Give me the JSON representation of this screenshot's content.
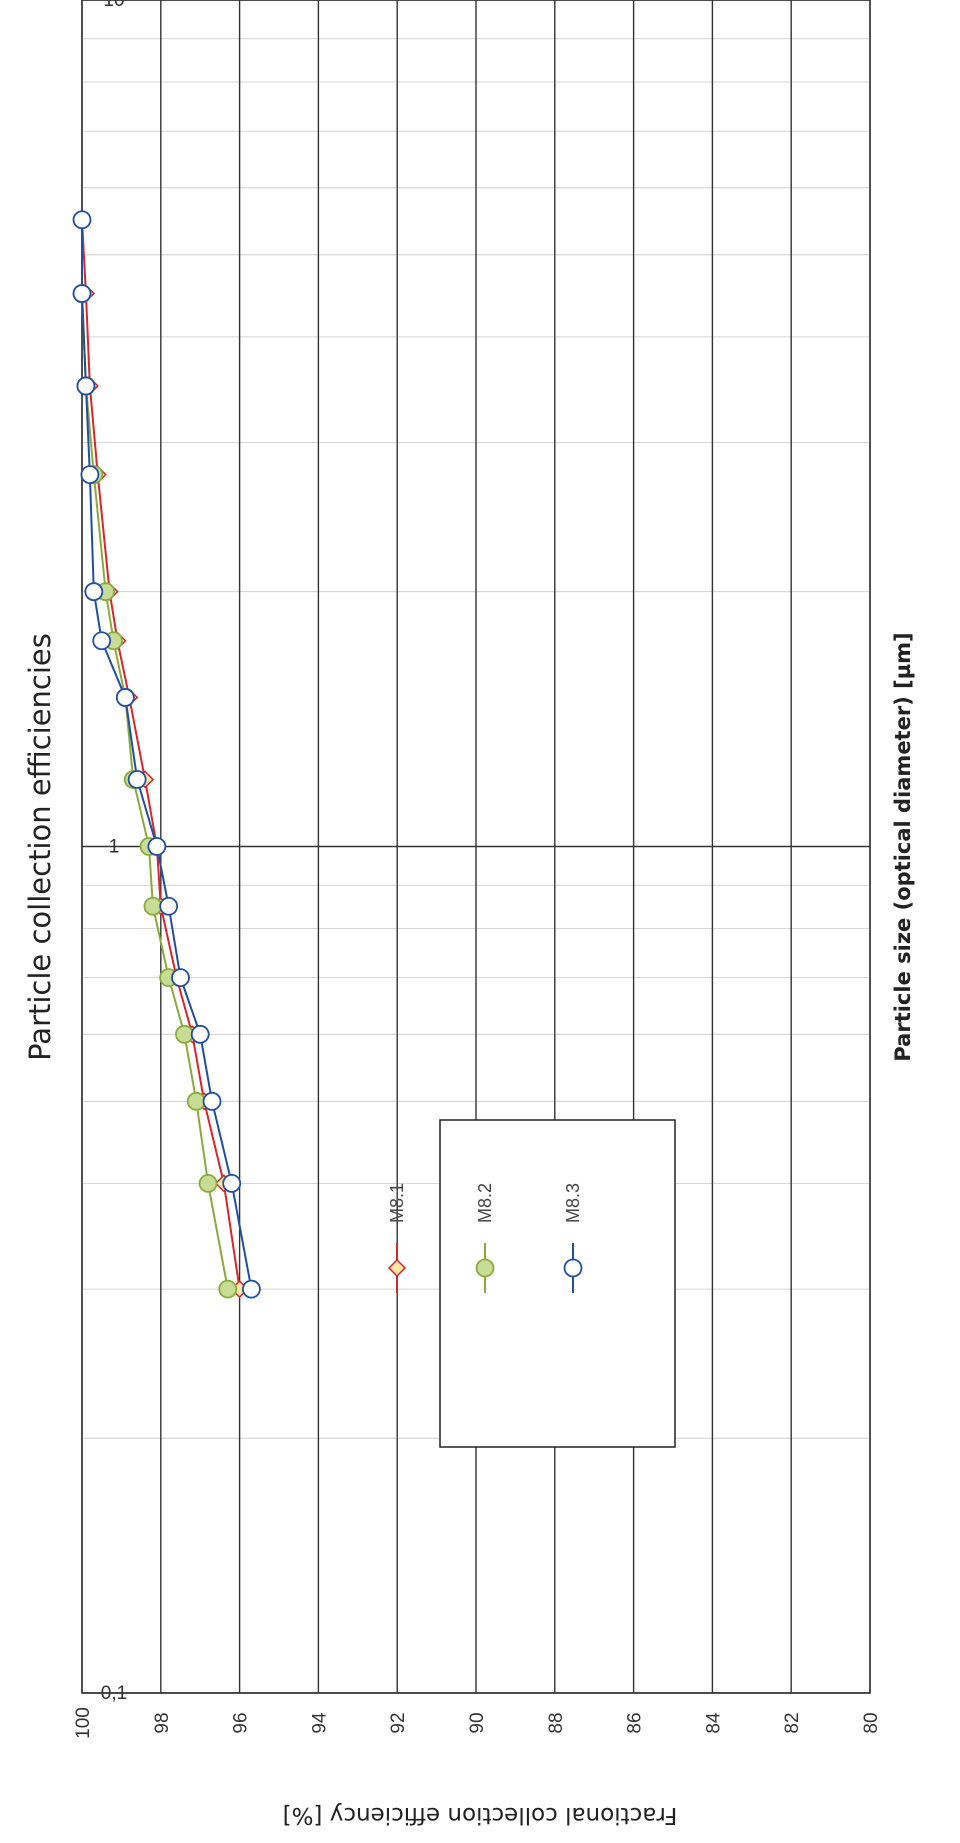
{
  "chart_data": {
    "type": "line",
    "title": "Particle collection efficiencies",
    "xlabel": "Particle size (optical diameter) [µm]",
    "ylabel": "Fractional collection efficiency [%]",
    "x_scale": "log",
    "xlim": [
      0.1,
      10
    ],
    "ylim": [
      80,
      100
    ],
    "x_ticks": [
      {
        "value": 0.1,
        "label": "0,1"
      },
      {
        "value": 1,
        "label": "1"
      },
      {
        "value": 10,
        "label": "10"
      }
    ],
    "y_ticks": [
      {
        "value": 80,
        "label": "80"
      },
      {
        "value": 82,
        "label": "82"
      },
      {
        "value": 84,
        "label": "84"
      },
      {
        "value": 86,
        "label": "86"
      },
      {
        "value": 88,
        "label": "88"
      },
      {
        "value": 90,
        "label": "90"
      },
      {
        "value": 92,
        "label": "92"
      },
      {
        "value": 94,
        "label": "94"
      },
      {
        "value": 96,
        "label": "96"
      },
      {
        "value": 98,
        "label": "98"
      },
      {
        "value": 100,
        "label": "100"
      }
    ],
    "grid": true,
    "legend_position": "lower-left",
    "series": [
      {
        "name": "M8.1",
        "color": "#d9262b",
        "marker": "diamond",
        "marker_fill": "#fde8a8",
        "x": [
          0.3,
          0.4,
          0.5,
          0.6,
          0.7,
          0.85,
          1.0,
          1.2,
          1.5,
          1.75,
          2.0,
          2.75,
          3.5,
          4.5,
          5.5
        ],
        "y": [
          96.0,
          96.4,
          96.9,
          97.2,
          97.6,
          98.0,
          98.1,
          98.4,
          98.8,
          99.1,
          99.3,
          99.6,
          99.8,
          99.9,
          100.0
        ]
      },
      {
        "name": "M8.2",
        "color": "#8aab3a",
        "marker": "circle",
        "marker_fill": "#c8dc96",
        "x": [
          0.3,
          0.4,
          0.5,
          0.6,
          0.7,
          0.85,
          1.0,
          1.2,
          1.5,
          1.75,
          2.0,
          2.75,
          3.5,
          4.5
        ],
        "y": [
          96.3,
          96.8,
          97.1,
          97.4,
          97.8,
          98.2,
          98.3,
          98.7,
          98.9,
          99.2,
          99.4,
          99.7,
          99.9,
          100.0
        ]
      },
      {
        "name": "M8.3",
        "color": "#1f4fa3",
        "marker": "circle",
        "marker_fill": "#ffffff",
        "x": [
          0.3,
          0.4,
          0.5,
          0.6,
          0.7,
          0.85,
          1.0,
          1.2,
          1.5,
          1.75,
          2.0,
          2.75,
          3.5,
          4.5,
          5.5
        ],
        "y": [
          95.7,
          96.2,
          96.7,
          97.0,
          97.5,
          97.8,
          98.1,
          98.6,
          98.9,
          99.5,
          99.7,
          99.8,
          99.9,
          100.0,
          100.0
        ]
      }
    ]
  }
}
